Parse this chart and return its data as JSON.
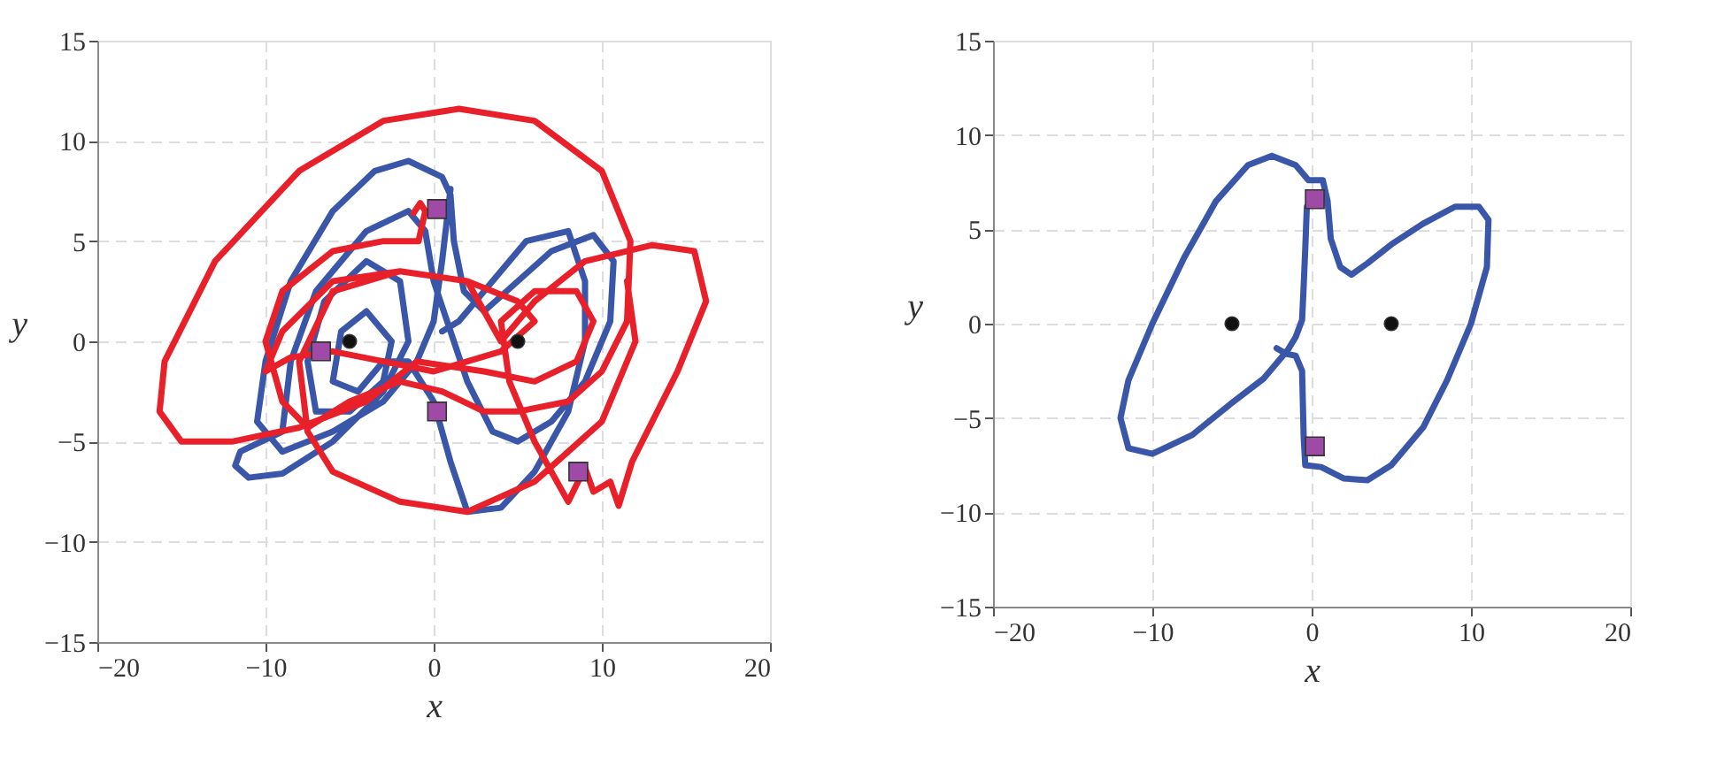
{
  "chart_data": [
    {
      "type": "line",
      "xlabel": "x",
      "ylabel": "y",
      "xlim": [
        -20,
        20
      ],
      "ylim": [
        -15,
        15
      ],
      "xticks": [
        -20,
        -10,
        0,
        10,
        20
      ],
      "yticks": [
        -15,
        -10,
        -5,
        0,
        5,
        10,
        15
      ],
      "grid": true,
      "line_style": "solid",
      "series": [
        {
          "color": "#3a56a8",
          "x": [
            1,
            0.5,
            0,
            -1,
            -3,
            -6,
            -9,
            -10.5,
            -10,
            -8.5,
            -6,
            -3.5,
            -1.5,
            0.5,
            1,
            1.2,
            1.8,
            3,
            5,
            7,
            9.5,
            10.7,
            10.5,
            9,
            7,
            5,
            3.5,
            2,
            1,
            0,
            -0.5,
            -1.5,
            -4,
            -7,
            -8.5,
            -9,
            -11.5,
            -11.8,
            -11,
            -9,
            -6,
            -3,
            -1.5,
            -2,
            -4,
            -6.5,
            -7.5,
            -7,
            -5,
            -3,
            -2.5,
            -4,
            -5.5,
            -6,
            -4.5,
            -3,
            -1.5,
            0,
            1,
            2,
            4,
            6,
            8,
            9,
            9,
            8,
            5.5,
            3,
            1.5,
            0.5
          ],
          "values": [
            7.6,
            4,
            1,
            -1,
            -3,
            -4.5,
            -5.5,
            -4,
            -1,
            3,
            6.5,
            8.5,
            9,
            8.2,
            7.3,
            5,
            2.5,
            1.5,
            3,
            4.5,
            5.3,
            4,
            1,
            -2,
            -4,
            -5,
            -4.5,
            -2,
            0.5,
            3,
            5.5,
            6.5,
            5.5,
            2.5,
            -1,
            -4.5,
            -5.5,
            -6.2,
            -6.8,
            -6.6,
            -5,
            -2.5,
            0,
            3,
            4,
            2,
            -1,
            -3.5,
            -3.5,
            -2,
            0,
            1.5,
            0.5,
            -2,
            -2.5,
            -1,
            -1,
            -3,
            -6,
            -8.5,
            -8.3,
            -6.5,
            -3.5,
            0,
            3,
            5.5,
            5,
            2.5,
            1,
            0.5
          ]
        },
        {
          "color": "#e8202a",
          "x": [
            -1.2,
            -0.8,
            -0.5,
            -0.9,
            -3,
            -6,
            -9,
            -10,
            -9,
            -7.5,
            -5,
            -2,
            0.5,
            3,
            5,
            8,
            10,
            11.5,
            11.7,
            10,
            6,
            1.5,
            -3,
            -8,
            -13,
            -16,
            -16.3,
            -15,
            -12,
            -8,
            -4,
            -1,
            3,
            6,
            8.5,
            9.5,
            8.5,
            6,
            4,
            4.5,
            6,
            8,
            9,
            9.5,
            10.5,
            11,
            11.8,
            14.5,
            16.2,
            15.5,
            13,
            9,
            6,
            4,
            2,
            -2,
            -6,
            -9,
            -10,
            -8.5,
            -6,
            -3,
            0,
            4,
            6,
            5,
            2,
            -2,
            -6,
            -8,
            -7.5,
            -6,
            -2,
            2,
            6,
            10,
            12,
            11.5
          ],
          "values": [
            6.4,
            6.9,
            6.5,
            5,
            5,
            4.5,
            2.5,
            0,
            -3,
            -4.3,
            -3,
            -2,
            -2.5,
            -3.5,
            -3.5,
            -3,
            -1.5,
            1,
            5,
            8.5,
            11,
            11.6,
            11,
            8.5,
            4,
            -1,
            -3.5,
            -5,
            -5,
            -4.3,
            -3,
            -1,
            -1.5,
            -2,
            -1,
            1,
            2.5,
            2.5,
            1,
            -2,
            -5,
            -8,
            -6.3,
            -7.5,
            -7,
            -8.2,
            -6,
            -1.5,
            2,
            4.5,
            4.8,
            4,
            2,
            0,
            3,
            3.5,
            3,
            0.5,
            -1.5,
            -0.8,
            -0.5,
            -1,
            -1.5,
            -0.5,
            1,
            2,
            3,
            3.5,
            2.5,
            -1,
            -4.5,
            -6.5,
            -8,
            -8.5,
            -7,
            -4,
            0,
            3
          ]
        },
        {
          "type": "scatter",
          "marker": "circle",
          "color": "#111111",
          "x": [
            -5,
            5
          ],
          "values": [
            0,
            0
          ]
        },
        {
          "type": "scatter",
          "marker": "square",
          "color": "#a04aa8",
          "x": [
            0.2,
            0.2,
            -6.7,
            8.6
          ],
          "values": [
            6.6,
            -3.5,
            -0.5,
            -6.5
          ]
        }
      ]
    },
    {
      "type": "line",
      "xlabel": "x",
      "ylabel": "y",
      "xlim": [
        -20,
        20
      ],
      "ylim": [
        -15,
        15
      ],
      "xticks": [
        -20,
        -10,
        0,
        10,
        20
      ],
      "yticks": [
        -15,
        -10,
        -5,
        0,
        5,
        10,
        15
      ],
      "grid": true,
      "line_style": "solid",
      "series": [
        {
          "color": "#3a56a8",
          "x": [
            -0.3,
            -0.4,
            -0.5,
            -0.6,
            -1,
            -1.5,
            -3,
            -5,
            -7.5,
            -10,
            -11.5,
            -12,
            -11.5,
            -10,
            -8,
            -6,
            -4,
            -2.5,
            -1,
            -0.2,
            0.7,
            1,
            1.2,
            1.8,
            2.5,
            3.5,
            5,
            7,
            9,
            10.5,
            11.1,
            11,
            10,
            8.5,
            7,
            5,
            3.5,
            2,
            0.6,
            -0.4,
            -0.5,
            -0.6,
            -1,
            -1.6,
            -2.2
          ],
          "values": [
            6.2,
            4,
            2,
            0.2,
            -0.7,
            -1.4,
            -2.9,
            -4.2,
            -5.9,
            -6.9,
            -6.6,
            -5,
            -3,
            0,
            3.5,
            6.5,
            8.4,
            8.9,
            8.4,
            7.6,
            7.6,
            6.5,
            4.5,
            3,
            2.6,
            3.2,
            4.2,
            5.3,
            6.2,
            6.2,
            5.5,
            3,
            0,
            -3,
            -5.5,
            -7.5,
            -8.3,
            -8.2,
            -7.6,
            -7.5,
            -6,
            -2.5,
            -1.7,
            -1.6,
            -1.3
          ]
        },
        {
          "type": "scatter",
          "marker": "circle",
          "color": "#111111",
          "x": [
            -5,
            5
          ],
          "values": [
            0,
            0
          ]
        },
        {
          "type": "scatter",
          "marker": "square",
          "color": "#a04aa8",
          "x": [
            0.2,
            0.2
          ],
          "values": [
            6.6,
            -6.5
          ]
        }
      ]
    }
  ]
}
